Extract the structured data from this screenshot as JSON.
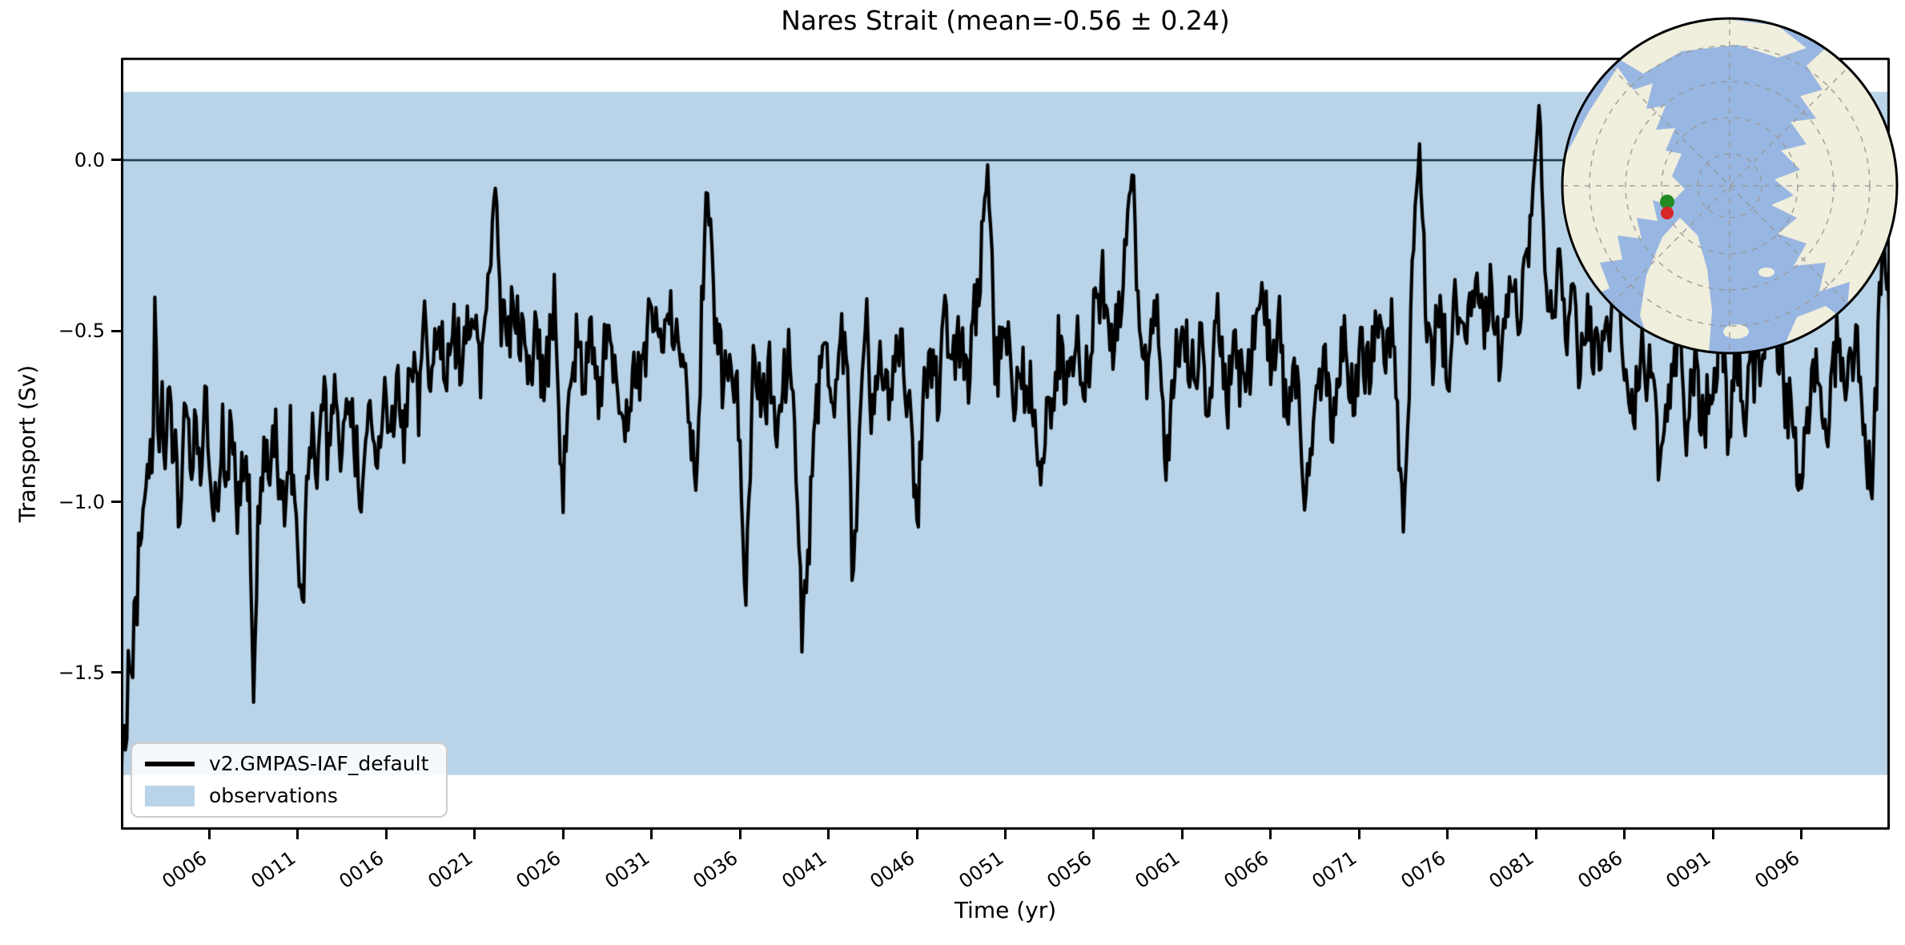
{
  "chart_data": {
    "type": "line",
    "title": "Nares Strait (mean=-0.56 ± 0.24)",
    "xlabel": "Time (yr)",
    "ylabel": "Transport (Sv)",
    "xlim": [
      1,
      101
    ],
    "ylim": [
      -1.96,
      0.3
    ],
    "grid": false,
    "x_tick_years": [
      6,
      11,
      16,
      21,
      26,
      31,
      36,
      41,
      46,
      51,
      56,
      61,
      66,
      71,
      76,
      81,
      86,
      91,
      96
    ],
    "x_tick_labels": [
      "0006",
      "0011",
      "0016",
      "0021",
      "0026",
      "0031",
      "0036",
      "0041",
      "0046",
      "0051",
      "0056",
      "0061",
      "0066",
      "0071",
      "0076",
      "0081",
      "0086",
      "0091",
      "0096"
    ],
    "y_tick_values": [
      0.0,
      -0.5,
      -1.0,
      -1.5
    ],
    "y_tick_labels": [
      "0.0",
      "−0.5",
      "−1.0",
      "−1.5"
    ],
    "zero_line": {
      "value": 0.0,
      "color": "#13303f",
      "width": 2.5
    },
    "observations_band": {
      "label": "observations",
      "color": "#b9d4e8",
      "min": -1.8,
      "max": 0.2
    },
    "legend": {
      "position": "lower left",
      "entries": [
        "v2.GMPAS-IAF_default",
        "observations"
      ]
    },
    "series": [
      {
        "name": "v2.GMPAS-IAF_default",
        "color": "#000000",
        "line_width": 4.2,
        "sampling": "monthly",
        "stats": {
          "mean": -0.56,
          "std": 0.24
        },
        "noise": {
          "seed": 20,
          "amp_fast": 0.1,
          "amp_slow": 0.055
        },
        "anchors": [
          [
            1,
            -1.87
          ],
          [
            1.15,
            -1.62
          ],
          [
            1.3,
            -1.8
          ],
          [
            1.45,
            -1.38
          ],
          [
            1.6,
            -1.58
          ],
          [
            1.75,
            -1.22
          ],
          [
            1.9,
            -1.3
          ],
          [
            2.05,
            -1.08
          ],
          [
            2.2,
            -0.98
          ],
          [
            2.4,
            -0.88
          ],
          [
            2.6,
            -0.98
          ],
          [
            2.8,
            -0.9
          ],
          [
            2.95,
            -0.3
          ],
          [
            3.1,
            -0.82
          ],
          [
            3.3,
            -0.62
          ],
          [
            3.5,
            -0.92
          ],
          [
            3.7,
            -0.68
          ],
          [
            3.9,
            -0.88
          ],
          [
            4.1,
            -0.72
          ],
          [
            4.3,
            -1.05
          ],
          [
            4.6,
            -0.72
          ],
          [
            4.9,
            -0.92
          ],
          [
            5.2,
            -0.78
          ],
          [
            5.5,
            -1.02
          ],
          [
            5.8,
            -0.72
          ],
          [
            6.1,
            -0.92
          ],
          [
            6.4,
            -1.12
          ],
          [
            6.7,
            -0.82
          ],
          [
            7,
            -0.97
          ],
          [
            7.3,
            -0.72
          ],
          [
            7.6,
            -1.07
          ],
          [
            7.9,
            -0.82
          ],
          [
            8.2,
            -0.92
          ],
          [
            8.5,
            -1.47
          ],
          [
            8.8,
            -1.02
          ],
          [
            9.1,
            -0.82
          ],
          [
            9.4,
            -0.97
          ],
          [
            9.7,
            -0.72
          ],
          [
            10,
            -0.92
          ],
          [
            10.3,
            -1.07
          ],
          [
            10.6,
            -0.82
          ],
          [
            10.9,
            -0.97
          ],
          [
            11.2,
            -1.38
          ],
          [
            11.5,
            -0.97
          ],
          [
            11.8,
            -0.82
          ],
          [
            12.1,
            -0.97
          ],
          [
            12.4,
            -0.72
          ],
          [
            12.7,
            -0.87
          ],
          [
            13,
            -0.67
          ],
          [
            13.4,
            -0.92
          ],
          [
            13.8,
            -0.72
          ],
          [
            14.2,
            -0.87
          ],
          [
            14.6,
            -1.02
          ],
          [
            15,
            -0.77
          ],
          [
            15.4,
            -0.92
          ],
          [
            15.8,
            -0.67
          ],
          [
            16.2,
            -0.82
          ],
          [
            16.6,
            -0.62
          ],
          [
            17,
            -0.77
          ],
          [
            17.4,
            -0.57
          ],
          [
            17.8,
            -0.72
          ],
          [
            18.2,
            -0.52
          ],
          [
            18.6,
            -0.67
          ],
          [
            19,
            -0.47
          ],
          [
            19.4,
            -0.62
          ],
          [
            19.8,
            -0.44
          ],
          [
            20.2,
            -0.57
          ],
          [
            20.6,
            -0.4
          ],
          [
            21,
            -0.54
          ],
          [
            21.4,
            -0.62
          ],
          [
            21.8,
            -0.37
          ],
          [
            22.2,
            -0.03
          ],
          [
            22.5,
            -0.42
          ],
          [
            22.8,
            -0.57
          ],
          [
            23.2,
            -0.37
          ],
          [
            23.6,
            -0.52
          ],
          [
            24,
            -0.64
          ],
          [
            24.5,
            -0.47
          ],
          [
            25,
            -0.62
          ],
          [
            25.5,
            -0.42
          ],
          [
            26,
            -0.97
          ],
          [
            26.4,
            -0.62
          ],
          [
            26.8,
            -0.47
          ],
          [
            27.2,
            -0.67
          ],
          [
            27.6,
            -0.52
          ],
          [
            28,
            -0.72
          ],
          [
            28.5,
            -0.47
          ],
          [
            29,
            -0.62
          ],
          [
            29.5,
            -0.77
          ],
          [
            30,
            -0.52
          ],
          [
            30.5,
            -0.67
          ],
          [
            31,
            -0.47
          ],
          [
            31.5,
            -0.62
          ],
          [
            32,
            -0.42
          ],
          [
            32.5,
            -0.57
          ],
          [
            33,
            -0.72
          ],
          [
            33.5,
            -1.02
          ],
          [
            34.1,
            -0.02
          ],
          [
            34.5,
            -0.47
          ],
          [
            35,
            -0.62
          ],
          [
            35.5,
            -0.5
          ],
          [
            36,
            -0.77
          ],
          [
            36.3,
            -1.28
          ],
          [
            36.8,
            -0.57
          ],
          [
            37.2,
            -0.72
          ],
          [
            37.6,
            -0.6
          ],
          [
            38,
            -0.77
          ],
          [
            38.5,
            -0.57
          ],
          [
            39,
            -0.67
          ],
          [
            39.5,
            -1.38
          ],
          [
            40,
            -0.97
          ],
          [
            40.4,
            -0.67
          ],
          [
            40.8,
            -0.52
          ],
          [
            41.2,
            -0.67
          ],
          [
            41.6,
            -0.47
          ],
          [
            42,
            -0.62
          ],
          [
            42.4,
            -1.2
          ],
          [
            42.8,
            -0.67
          ],
          [
            43.2,
            -0.52
          ],
          [
            43.6,
            -0.82
          ],
          [
            44,
            -0.57
          ],
          [
            44.5,
            -0.72
          ],
          [
            45,
            -0.52
          ],
          [
            45.5,
            -0.67
          ],
          [
            46,
            -1.02
          ],
          [
            46.4,
            -0.72
          ],
          [
            46.8,
            -0.52
          ],
          [
            47.2,
            -0.67
          ],
          [
            47.6,
            -0.47
          ],
          [
            48,
            -0.62
          ],
          [
            48.5,
            -0.44
          ],
          [
            49,
            -0.6
          ],
          [
            49.5,
            -0.35
          ],
          [
            50,
            -0.02
          ],
          [
            50.4,
            -0.5
          ],
          [
            50.8,
            -0.62
          ],
          [
            51.2,
            -0.5
          ],
          [
            51.6,
            -0.7
          ],
          [
            52,
            -0.57
          ],
          [
            52.5,
            -0.72
          ],
          [
            53,
            -0.92
          ],
          [
            53.5,
            -0.72
          ],
          [
            54,
            -0.57
          ],
          [
            54.5,
            -0.7
          ],
          [
            55,
            -0.52
          ],
          [
            55.5,
            -0.64
          ],
          [
            56,
            -0.47
          ],
          [
            56.5,
            -0.32
          ],
          [
            57,
            -0.57
          ],
          [
            57.5,
            -0.42
          ],
          [
            58.2,
            0.0
          ],
          [
            58.6,
            -0.52
          ],
          [
            59,
            -0.67
          ],
          [
            59.5,
            -0.42
          ],
          [
            60,
            -0.92
          ],
          [
            60.5,
            -0.62
          ],
          [
            61,
            -0.47
          ],
          [
            61.5,
            -0.62
          ],
          [
            62,
            -0.52
          ],
          [
            62.5,
            -0.67
          ],
          [
            63,
            -0.52
          ],
          [
            63.5,
            -0.72
          ],
          [
            64,
            -0.57
          ],
          [
            64.5,
            -0.67
          ],
          [
            65,
            -0.52
          ],
          [
            65.5,
            -0.37
          ],
          [
            66,
            -0.62
          ],
          [
            66.5,
            -0.52
          ],
          [
            67,
            -0.72
          ],
          [
            67.5,
            -0.57
          ],
          [
            68,
            -0.97
          ],
          [
            68.5,
            -0.72
          ],
          [
            69,
            -0.57
          ],
          [
            69.5,
            -0.72
          ],
          [
            70,
            -0.52
          ],
          [
            70.5,
            -0.67
          ],
          [
            71,
            -0.52
          ],
          [
            71.5,
            -0.62
          ],
          [
            72,
            -0.47
          ],
          [
            72.5,
            -0.62
          ],
          [
            73,
            -0.52
          ],
          [
            73.5,
            -1.07
          ],
          [
            74,
            -0.32
          ],
          [
            74.4,
            0.07
          ],
          [
            74.8,
            -0.42
          ],
          [
            75.2,
            -0.57
          ],
          [
            75.6,
            -0.42
          ],
          [
            76,
            -0.57
          ],
          [
            76.5,
            -0.42
          ],
          [
            77,
            -0.57
          ],
          [
            77.5,
            -0.37
          ],
          [
            78,
            -0.52
          ],
          [
            78.5,
            -0.42
          ],
          [
            79,
            -0.57
          ],
          [
            79.5,
            -0.37
          ],
          [
            80,
            -0.52
          ],
          [
            80.4,
            -0.27
          ],
          [
            80.8,
            -0.12
          ],
          [
            81.2,
            0.14
          ],
          [
            81.5,
            -0.32
          ],
          [
            81.8,
            -0.47
          ],
          [
            82.2,
            -0.32
          ],
          [
            82.6,
            -0.52
          ],
          [
            83,
            -0.37
          ],
          [
            83.5,
            -0.57
          ],
          [
            84,
            -0.42
          ],
          [
            84.5,
            -0.62
          ],
          [
            85,
            -0.47
          ],
          [
            85.5,
            -0.32
          ],
          [
            86,
            -0.57
          ],
          [
            86.5,
            -0.72
          ],
          [
            87,
            -0.52
          ],
          [
            87.5,
            -0.67
          ],
          [
            88,
            -0.92
          ],
          [
            88.5,
            -0.67
          ],
          [
            89,
            -0.52
          ],
          [
            89.5,
            -0.72
          ],
          [
            90,
            -0.57
          ],
          [
            90.5,
            -0.77
          ],
          [
            91,
            -0.62
          ],
          [
            91.5,
            -0.47
          ],
          [
            91.9,
            -0.94
          ],
          [
            92.3,
            -0.52
          ],
          [
            92.7,
            -0.72
          ],
          [
            93.1,
            -0.57
          ],
          [
            93.5,
            -0.72
          ],
          [
            94,
            -0.57
          ],
          [
            94.5,
            -0.47
          ],
          [
            95,
            -0.67
          ],
          [
            95.5,
            -0.82
          ],
          [
            96,
            -0.97
          ],
          [
            96.5,
            -0.72
          ],
          [
            97,
            -0.57
          ],
          [
            97.5,
            -0.72
          ],
          [
            98,
            -0.52
          ],
          [
            98.5,
            -0.67
          ],
          [
            99,
            -0.52
          ],
          [
            99.5,
            -0.72
          ],
          [
            100,
            -0.93
          ],
          [
            100.4,
            -0.4
          ],
          [
            100.7,
            -0.18
          ],
          [
            101,
            -0.52
          ]
        ]
      }
    ]
  },
  "inset_map": {
    "projection": "north-polar-stereographic",
    "ocean_color": "#98b6e2",
    "land_color": "#f0eedc",
    "land_edge_color": "#ddd9c2",
    "graticule_color": "#999999",
    "border_color": "#000000",
    "markers": [
      {
        "id": "strait-marker-green",
        "color": "#228b22"
      },
      {
        "id": "strait-marker-red",
        "color": "#d62728"
      }
    ]
  }
}
